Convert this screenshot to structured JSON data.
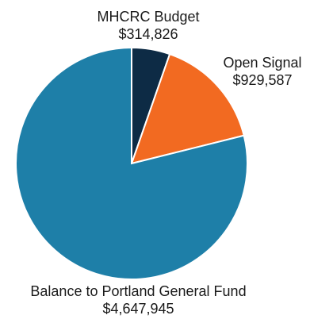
{
  "chart_data": {
    "type": "pie",
    "title": "",
    "slices": [
      {
        "label": "MHCRC Budget",
        "value_text": "$314,826",
        "value": 314826,
        "color": "#0d2b45"
      },
      {
        "label": "Open Signal",
        "value_text": "$929,587",
        "value": 929587,
        "color": "#f26a21"
      },
      {
        "label": "Balance to Portland General Fund",
        "value_text": "$4,647,945",
        "value": 4647945,
        "color": "#1e7fa8"
      }
    ],
    "start_angle_deg": 0,
    "direction": "clockwise",
    "legend": "none"
  }
}
